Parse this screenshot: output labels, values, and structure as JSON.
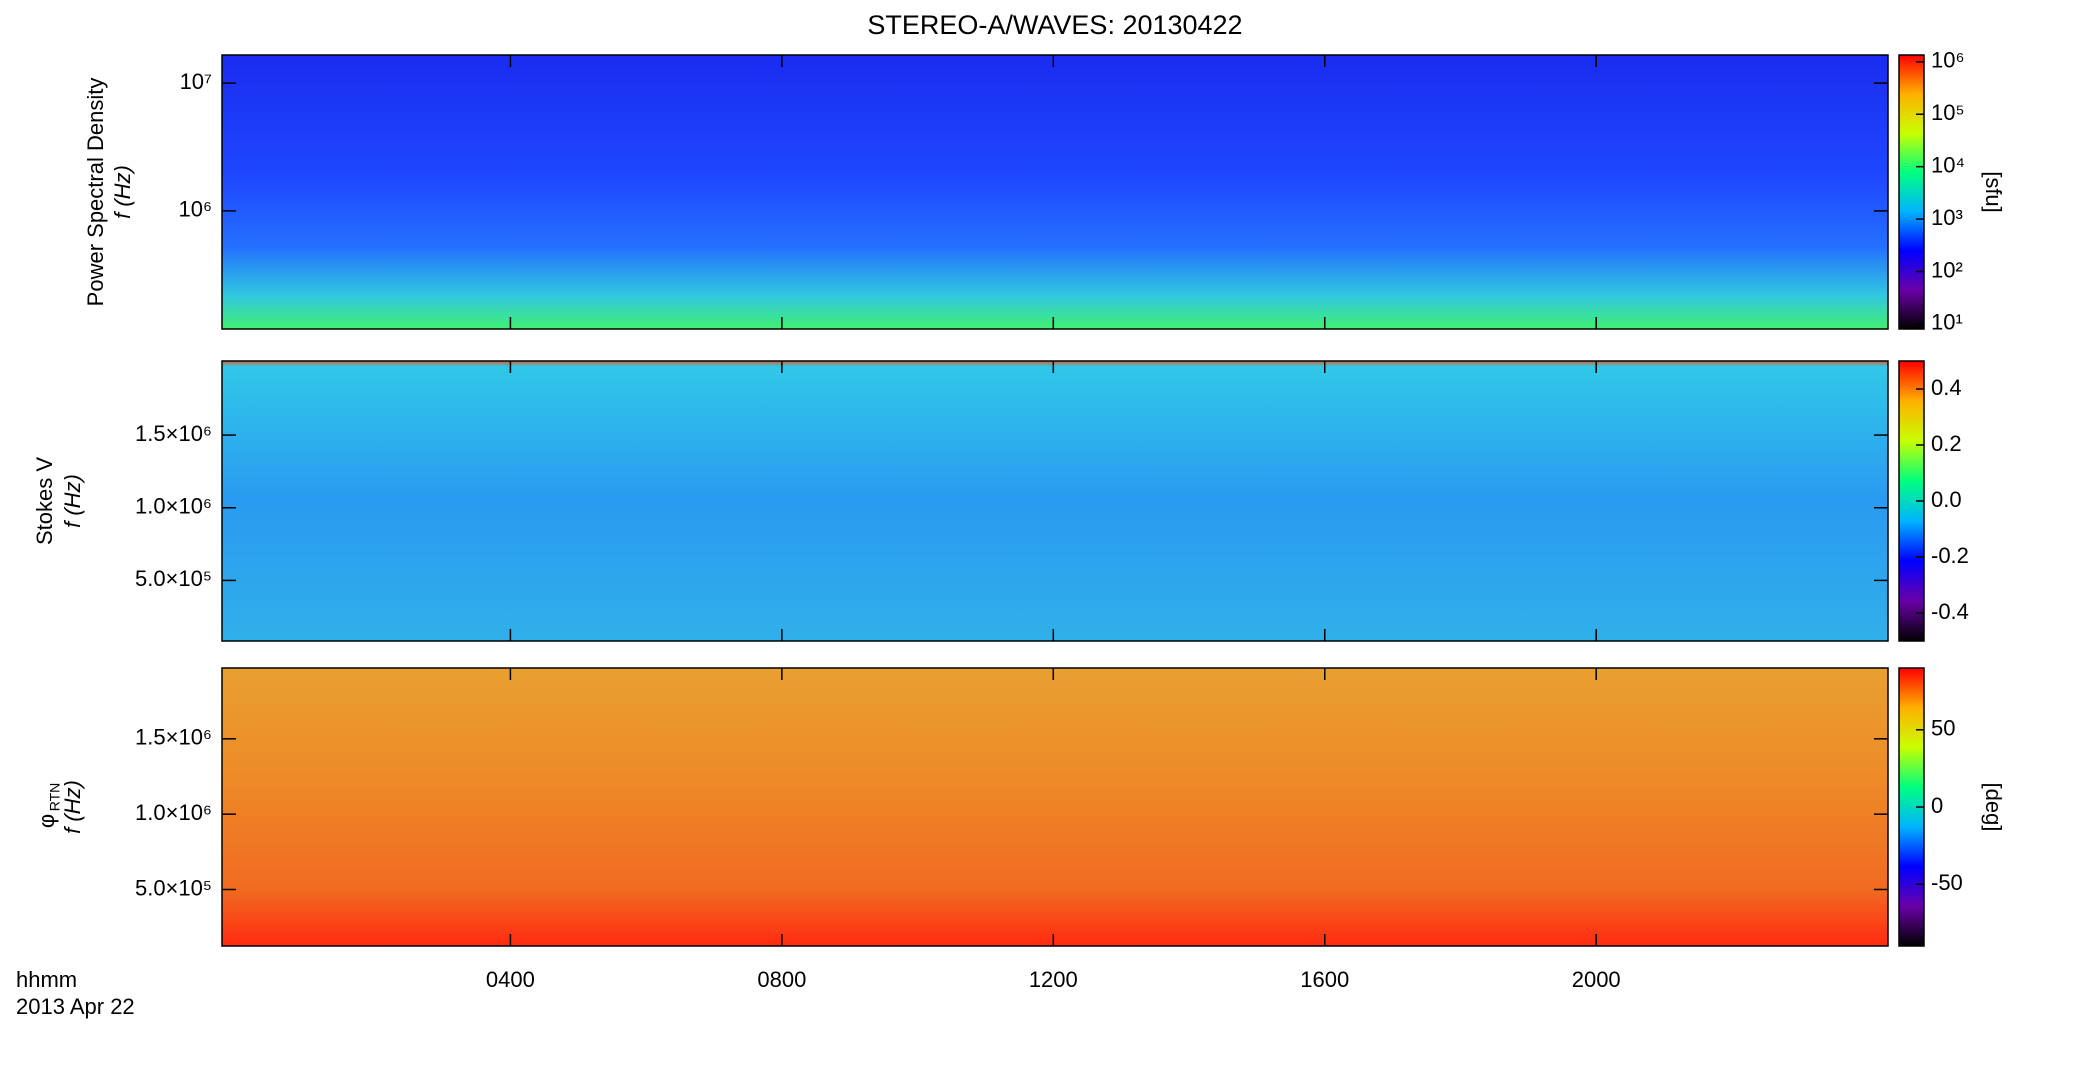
{
  "chart_data": [
    {
      "type": "heatmap",
      "title": "STEREO-A/WAVES: 20130422",
      "ylabel": "Power Spectral Density",
      "ylabel2": "f (Hz)",
      "ylog": true,
      "ylim": [
        119000,
        16600000
      ],
      "yticks": [
        {
          "value": 1000000,
          "label": "10⁶"
        },
        {
          "value": 10000000,
          "label": "10⁷"
        }
      ],
      "colorbar": {
        "label": "[sfu]",
        "log": true,
        "lim": [
          8,
          1350000
        ],
        "ticks": [
          {
            "value": 10,
            "label": "10¹"
          },
          {
            "value": 100,
            "label": "10²"
          },
          {
            "value": 1000,
            "label": "10³"
          },
          {
            "value": 10000,
            "label": "10⁴"
          },
          {
            "value": 100000,
            "label": "10⁵"
          },
          {
            "value": 1000000,
            "label": "10⁶"
          }
        ]
      },
      "colormap": [
        "#000000",
        "#6a00a8",
        "#0000ff",
        "#00b4ff",
        "#00ff80",
        "#c8ff00",
        "#ffb000",
        "#ff0000"
      ]
    },
    {
      "type": "heatmap",
      "ylabel": "Stokes V",
      "ylabel2": "f (Hz)",
      "ylog": false,
      "ylim": [
        83000,
        2010000
      ],
      "yticks": [
        {
          "value": 500000,
          "label": "5.0×10⁵"
        },
        {
          "value": 1000000,
          "label": "1.0×10⁶"
        },
        {
          "value": 1500000,
          "label": "1.5×10⁶"
        }
      ],
      "colorbar": {
        "log": false,
        "lim": [
          -0.5,
          0.5
        ],
        "ticks": [
          -0.4,
          -0.2,
          {
            "value": 0,
            "label": "0.0"
          },
          0.2,
          0.4
        ]
      },
      "colormap": [
        "#000000",
        "#6a00a8",
        "#0000ff",
        "#00b4ff",
        "#00ff80",
        "#c8ff00",
        "#ffb000",
        "#ff0000"
      ]
    },
    {
      "type": "heatmap",
      "ylabel": "φ",
      "ylabel_sub": "RTN",
      "ylabel2": "f (Hz)",
      "ylog": false,
      "ylim": [
        125000,
        1970000
      ],
      "yticks": [
        {
          "value": 500000,
          "label": "5.0×10⁵"
        },
        {
          "value": 1000000,
          "label": "1.0×10⁶"
        },
        {
          "value": 1500000,
          "label": "1.5×10⁶"
        }
      ],
      "colorbar": {
        "label": "[deg]",
        "log": false,
        "lim": [
          -90,
          90
        ],
        "ticks": [
          -50,
          0,
          50
        ]
      },
      "colormap": [
        "#000000",
        "#6a00a8",
        "#0000ff",
        "#00b4ff",
        "#00ff80",
        "#c8ff00",
        "#ffb000",
        "#ff0000"
      ],
      "xlabel": "hhmm",
      "date": "2013 Apr 22",
      "xlim": [
        -0.25,
        24.3
      ],
      "xticks": [
        {
          "value": 4,
          "label": "0400"
        },
        {
          "value": 8,
          "label": "0800"
        },
        {
          "value": 12,
          "label": "1200"
        },
        {
          "value": 16,
          "label": "1600"
        },
        {
          "value": 20,
          "label": "2000"
        }
      ]
    }
  ]
}
